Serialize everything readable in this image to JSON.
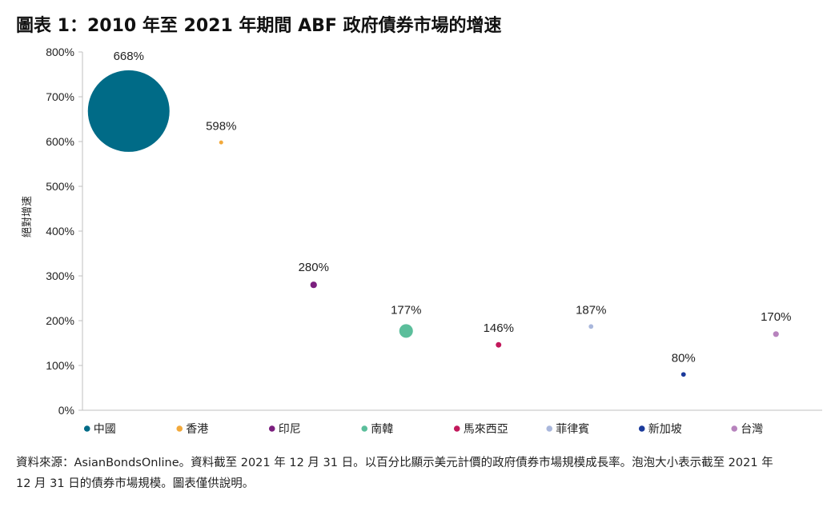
{
  "title": "圖表 1：2010 年至 2021 年期間 ABF 政府債券市場的增速",
  "note_line1": "資料來源：AsianBondsOnline。資料截至 2021 年 12 月 31 日。以百分比顯示美元計價的政府債券市場規模成長率。泡泡大小表示截至 2021 年",
  "note_line2": "12 月 31 日的債券市場規模。圖表僅供說明。",
  "chart_data": {
    "type": "bubble",
    "ylabel": "絕對增速",
    "ylim": [
      0,
      800
    ],
    "yticks": [
      0,
      100,
      200,
      300,
      400,
      500,
      600,
      700,
      800
    ],
    "ytick_labels": [
      "0%",
      "100%",
      "200%",
      "300%",
      "400%",
      "500%",
      "600%",
      "700%",
      "800%"
    ],
    "grid": false,
    "legend_position": "bottom",
    "series": [
      {
        "name": "中國",
        "value": 668,
        "label": "668%",
        "relative_size": 1.0,
        "color": "#006B87"
      },
      {
        "name": "香港",
        "value": 598,
        "label": "598%",
        "relative_size": 0.001,
        "color": "#F2A93B"
      },
      {
        "name": "印尼",
        "value": 280,
        "label": "280%",
        "relative_size": 0.0065,
        "color": "#7B1F7E"
      },
      {
        "name": "南韓",
        "value": 177,
        "label": "177%",
        "relative_size": 0.028,
        "color": "#5BBE9B"
      },
      {
        "name": "馬來西亞",
        "value": 146,
        "label": "146%",
        "relative_size": 0.0046,
        "color": "#C2185B"
      },
      {
        "name": "菲律賓",
        "value": 187,
        "label": "187%",
        "relative_size": 0.0032,
        "color": "#A9B7DC"
      },
      {
        "name": "新加坡",
        "value": 80,
        "label": "80%",
        "relative_size": 0.0032,
        "color": "#1B3A9B"
      },
      {
        "name": "台灣",
        "value": 170,
        "label": "170%",
        "relative_size": 0.005,
        "color": "#B783BD"
      }
    ]
  }
}
